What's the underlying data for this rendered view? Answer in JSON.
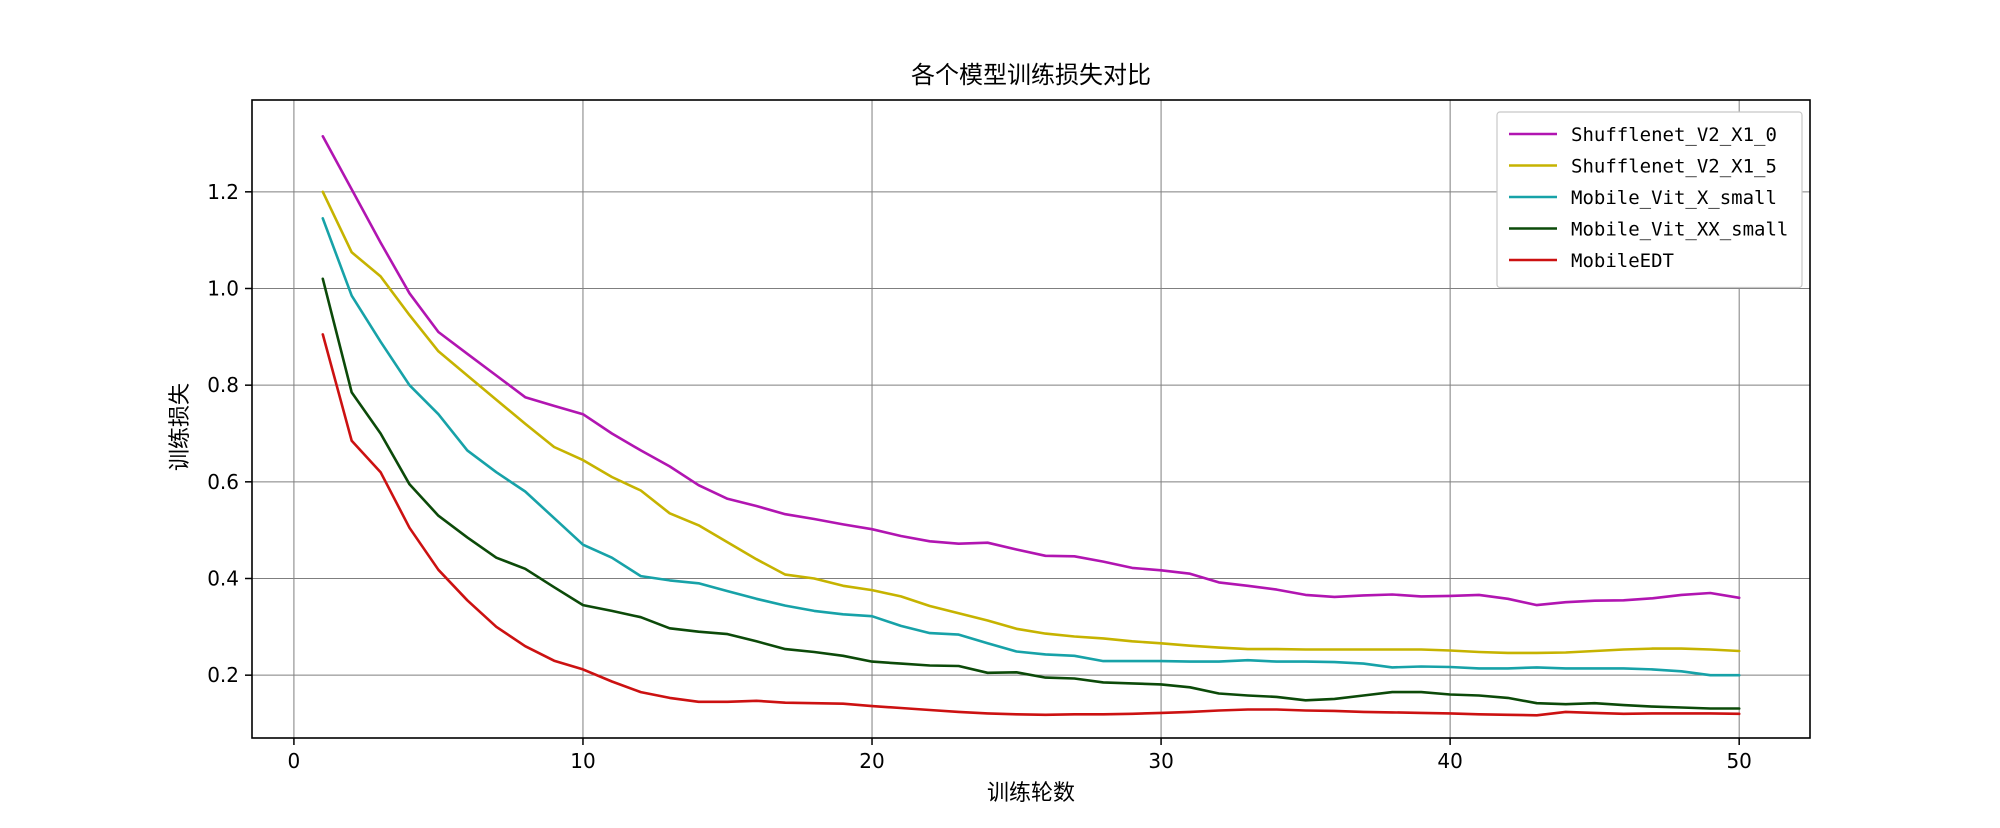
{
  "chart_data": {
    "type": "line",
    "title": "各个模型训练损失对比",
    "xlabel": "训练轮数",
    "ylabel": "训练损失",
    "xlim": [
      -1.45,
      52.45
    ],
    "ylim": [
      0.07,
      1.39
    ],
    "xticks": [
      0,
      10,
      20,
      30,
      40,
      50
    ],
    "yticks": [
      0.2,
      0.4,
      0.6,
      0.8,
      1.0,
      1.2
    ],
    "xtick_labels": [
      "0",
      "10",
      "20",
      "30",
      "40",
      "50"
    ],
    "ytick_labels": [
      "0.2",
      "0.4",
      "0.6",
      "0.8",
      "1.0",
      "1.2"
    ],
    "grid": true,
    "legend_position": "top-right",
    "x": [
      1,
      2,
      3,
      4,
      5,
      6,
      7,
      8,
      9,
      10,
      11,
      12,
      13,
      14,
      15,
      16,
      17,
      18,
      19,
      20,
      21,
      22,
      23,
      24,
      25,
      26,
      27,
      28,
      29,
      30,
      31,
      32,
      33,
      34,
      35,
      36,
      37,
      38,
      39,
      40,
      41,
      42,
      43,
      44,
      45,
      46,
      47,
      48,
      49,
      50
    ],
    "series": [
      {
        "name": "Shufflenet_V2_X1_0",
        "color": "#b115b1",
        "values": [
          1.315,
          1.205,
          1.095,
          0.99,
          0.91,
          0.865,
          0.82,
          0.775,
          0.757,
          0.74,
          0.7,
          0.665,
          0.632,
          0.593,
          0.565,
          0.55,
          0.533,
          0.523,
          0.512,
          0.502,
          0.488,
          0.477,
          0.472,
          0.474,
          0.46,
          0.447,
          0.446,
          0.435,
          0.422,
          0.417,
          0.41,
          0.392,
          0.385,
          0.377,
          0.366,
          0.362,
          0.365,
          0.367,
          0.363,
          0.364,
          0.366,
          0.358,
          0.345,
          0.351,
          0.354,
          0.355,
          0.359,
          0.366,
          0.37,
          0.36
        ]
      },
      {
        "name": "Shufflenet_V2_X1_5",
        "color": "#c6b300",
        "values": [
          1.2,
          1.075,
          1.025,
          0.945,
          0.87,
          0.82,
          0.77,
          0.72,
          0.672,
          0.645,
          0.61,
          0.582,
          0.535,
          0.51,
          0.475,
          0.44,
          0.408,
          0.4,
          0.385,
          0.376,
          0.363,
          0.343,
          0.328,
          0.313,
          0.296,
          0.286,
          0.28,
          0.276,
          0.27,
          0.266,
          0.261,
          0.257,
          0.254,
          0.254,
          0.253,
          0.253,
          0.253,
          0.253,
          0.253,
          0.251,
          0.248,
          0.246,
          0.246,
          0.247,
          0.25,
          0.253,
          0.255,
          0.255,
          0.253,
          0.25
        ]
      },
      {
        "name": "Mobile_Vit_X_small",
        "color": "#17a2a8",
        "values": [
          1.145,
          0.985,
          0.89,
          0.8,
          0.74,
          0.665,
          0.62,
          0.58,
          0.525,
          0.47,
          0.443,
          0.405,
          0.396,
          0.39,
          0.374,
          0.358,
          0.344,
          0.333,
          0.326,
          0.322,
          0.302,
          0.287,
          0.284,
          0.266,
          0.249,
          0.243,
          0.24,
          0.229,
          0.229,
          0.229,
          0.228,
          0.228,
          0.231,
          0.228,
          0.228,
          0.227,
          0.224,
          0.216,
          0.218,
          0.217,
          0.214,
          0.214,
          0.216,
          0.214,
          0.214,
          0.214,
          0.212,
          0.208,
          0.2,
          0.2
        ]
      },
      {
        "name": "Mobile_Vit_XX_small",
        "color": "#0c4a09",
        "values": [
          1.02,
          0.785,
          0.7,
          0.595,
          0.53,
          0.485,
          0.443,
          0.42,
          0.382,
          0.345,
          0.333,
          0.32,
          0.297,
          0.29,
          0.285,
          0.27,
          0.254,
          0.248,
          0.24,
          0.228,
          0.224,
          0.22,
          0.219,
          0.205,
          0.206,
          0.195,
          0.193,
          0.185,
          0.183,
          0.181,
          0.175,
          0.162,
          0.158,
          0.155,
          0.148,
          0.151,
          0.158,
          0.165,
          0.165,
          0.16,
          0.158,
          0.153,
          0.142,
          0.14,
          0.142,
          0.138,
          0.135,
          0.133,
          0.131,
          0.131
        ]
      },
      {
        "name": "MobileEDT",
        "color": "#cc1111",
        "values": [
          0.905,
          0.685,
          0.62,
          0.505,
          0.418,
          0.355,
          0.3,
          0.26,
          0.23,
          0.212,
          0.187,
          0.165,
          0.153,
          0.145,
          0.145,
          0.147,
          0.143,
          0.142,
          0.141,
          0.136,
          0.132,
          0.128,
          0.124,
          0.121,
          0.119,
          0.118,
          0.119,
          0.119,
          0.12,
          0.122,
          0.124,
          0.127,
          0.129,
          0.129,
          0.127,
          0.126,
          0.124,
          0.123,
          0.122,
          0.121,
          0.119,
          0.118,
          0.117,
          0.124,
          0.122,
          0.12,
          0.121,
          0.121,
          0.121,
          0.12
        ]
      }
    ]
  }
}
